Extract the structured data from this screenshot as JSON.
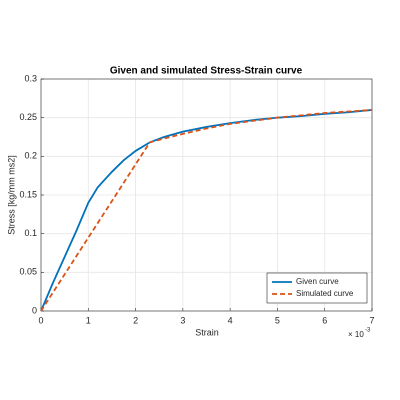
{
  "chart_data": {
    "type": "line",
    "title": "Given and simulated Stress-Strain curve",
    "xlabel": "Strain",
    "ylabel": "Stress [kg/mm ms2]",
    "x_multiplier": "× 10",
    "x_exponent": "-3",
    "xlim": [
      0,
      7
    ],
    "xticks": [
      0,
      1,
      2,
      3,
      4,
      5,
      6,
      7
    ],
    "ylim": [
      0,
      0.3
    ],
    "yticks": [
      0,
      0.05,
      0.1,
      0.15,
      0.2,
      0.25,
      0.3
    ],
    "grid": true,
    "legend": "lower-right",
    "series": [
      {
        "name": "Given curve",
        "color": "#0072bd",
        "dash": "solid",
        "x": [
          0,
          0.25,
          0.5,
          0.75,
          1,
          1.2,
          1.5,
          1.75,
          2,
          2.3,
          2.6,
          3,
          3.5,
          4,
          4.5,
          5,
          5.5,
          6,
          6.5,
          7
        ],
        "values": [
          0,
          0.036,
          0.07,
          0.104,
          0.14,
          0.16,
          0.18,
          0.195,
          0.207,
          0.218,
          0.225,
          0.232,
          0.238,
          0.243,
          0.247,
          0.25,
          0.252,
          0.255,
          0.257,
          0.26
        ]
      },
      {
        "name": "Simulated curve",
        "color": "#d95319",
        "dash": "dashed",
        "x": [
          0,
          2.3,
          2.6,
          3,
          3.5,
          4,
          4.5,
          5,
          5.5,
          6,
          6.5,
          7
        ],
        "values": [
          0,
          0.218,
          0.223,
          0.229,
          0.236,
          0.242,
          0.246,
          0.25,
          0.253,
          0.256,
          0.258,
          0.26
        ]
      }
    ]
  }
}
